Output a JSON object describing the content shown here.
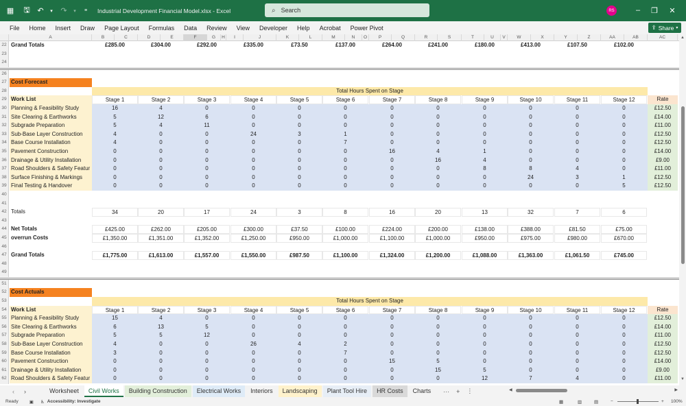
{
  "titlebar": {
    "title": "Industrial Development Financial Model.xlsx  -  Excel",
    "search_placeholder": "Search",
    "avatar_initials": "RS"
  },
  "menu": [
    "File",
    "Home",
    "Insert",
    "Draw",
    "Page Layout",
    "Formulas",
    "Data",
    "Review",
    "View",
    "Developer",
    "Help",
    "Acrobat",
    "Power Pivot"
  ],
  "share_label": "Share",
  "columns": [
    "A",
    "B",
    "C",
    "D",
    "E",
    "F",
    "G",
    "H",
    "I",
    "J",
    "K",
    "L",
    "M",
    "N",
    "O",
    "P",
    "Q",
    "R",
    "S",
    "T",
    "U",
    "V",
    "W",
    "X",
    "Y",
    "Z",
    "AA",
    "AB",
    "AC"
  ],
  "top_grand_totals": {
    "row": "22",
    "label": "Grand Totals",
    "values": [
      "£285.00",
      "£304.00",
      "£292.00",
      "£335.00",
      "£73.50",
      "£137.00",
      "£264.00",
      "£241.00",
      "£180.00",
      "£413.00",
      "£107.50",
      "£102.00"
    ]
  },
  "forecast": {
    "title": "Cost Forecast",
    "band": "Total Hours Spent on Stage",
    "worklist_header": "Work List",
    "stages": [
      "Stage 1",
      "Stage 2",
      "Stage 3",
      "Stage 4",
      "Stage 5",
      "Stage 6",
      "Stage 7",
      "Stage 8",
      "Stage 9",
      "Stage 10",
      "Stage 11",
      "Stage 12"
    ],
    "rate_header": "Rate",
    "rows": [
      {
        "n": "30",
        "label": "Planning & Feasibility Study",
        "v": [
          "16",
          "4",
          "0",
          "0",
          "0",
          "0",
          "0",
          "0",
          "0",
          "0",
          "0",
          "0"
        ],
        "rate": "£12.50"
      },
      {
        "n": "31",
        "label": "Site Clearing & Earthworks",
        "v": [
          "5",
          "12",
          "6",
          "0",
          "0",
          "0",
          "0",
          "0",
          "0",
          "0",
          "0",
          "0"
        ],
        "rate": "£14.00"
      },
      {
        "n": "32",
        "label": "Subgrade Preparation",
        "v": [
          "5",
          "4",
          "11",
          "0",
          "0",
          "0",
          "0",
          "0",
          "0",
          "0",
          "0",
          "0"
        ],
        "rate": "£11.00"
      },
      {
        "n": "33",
        "label": "Sub-Base Layer Construction",
        "v": [
          "4",
          "0",
          "0",
          "24",
          "3",
          "1",
          "0",
          "0",
          "0",
          "0",
          "0",
          "0"
        ],
        "rate": "£12.50"
      },
      {
        "n": "34",
        "label": "Base Course Installation",
        "v": [
          "4",
          "0",
          "0",
          "0",
          "0",
          "7",
          "0",
          "0",
          "0",
          "0",
          "0",
          "0"
        ],
        "rate": "£12.50"
      },
      {
        "n": "35",
        "label": "Pavement Construction",
        "v": [
          "0",
          "0",
          "0",
          "0",
          "0",
          "0",
          "16",
          "4",
          "1",
          "0",
          "0",
          "0"
        ],
        "rate": "£14.00"
      },
      {
        "n": "36",
        "label": "Drainage & Utility Installation",
        "v": [
          "0",
          "0",
          "0",
          "0",
          "0",
          "0",
          "0",
          "16",
          "4",
          "0",
          "0",
          "0"
        ],
        "rate": "£9.00"
      },
      {
        "n": "37",
        "label": "Road Shoulders & Safety Featur",
        "v": [
          "0",
          "0",
          "0",
          "0",
          "0",
          "0",
          "0",
          "0",
          "8",
          "8",
          "4",
          "0"
        ],
        "rate": "£11.00"
      },
      {
        "n": "38",
        "label": "Surface Finishing & Markings",
        "v": [
          "0",
          "0",
          "0",
          "0",
          "0",
          "0",
          "0",
          "0",
          "0",
          "24",
          "3",
          "1"
        ],
        "rate": "£12.50"
      },
      {
        "n": "39",
        "label": "Final Testing & Handover",
        "v": [
          "0",
          "0",
          "0",
          "0",
          "0",
          "0",
          "0",
          "0",
          "0",
          "0",
          "0",
          "5"
        ],
        "rate": "£12.50"
      }
    ],
    "totals_label": "Totals",
    "totals": [
      "34",
      "20",
      "17",
      "24",
      "3",
      "8",
      "16",
      "20",
      "13",
      "32",
      "7",
      "6"
    ],
    "net_label": "Net Totals",
    "net": [
      "£425.00",
      "£262.00",
      "£205.00",
      "£300.00",
      "£37.50",
      "£100.00",
      "£224.00",
      "£200.00",
      "£138.00",
      "£388.00",
      "£81.50",
      "£75.00"
    ],
    "overrun_label": "overrun Costs",
    "overrun": [
      "£1,350.00",
      "£1,351.00",
      "£1,352.00",
      "£1,250.00",
      "£950.00",
      "£1,000.00",
      "£1,100.00",
      "£1,000.00",
      "£950.00",
      "£975.00",
      "£980.00",
      "£670.00"
    ],
    "grand_label": "Grand Totals",
    "grand": [
      "£1,775.00",
      "£1,613.00",
      "£1,557.00",
      "£1,550.00",
      "£987.50",
      "£1,100.00",
      "£1,324.00",
      "£1,200.00",
      "£1,088.00",
      "£1,363.00",
      "£1,061.50",
      "£745.00"
    ]
  },
  "actuals": {
    "title": "Cost Actuals",
    "band": "Total Hours Spent on Stage",
    "worklist_header": "Work List",
    "stages": [
      "Stage 1",
      "Stage 2",
      "Stage 3",
      "Stage 4",
      "Stage 5",
      "Stage 6",
      "Stage 7",
      "Stage 8",
      "Stage 9",
      "Stage 10",
      "Stage 11",
      "Stage 12"
    ],
    "rate_header": "Rate",
    "rows": [
      {
        "n": "55",
        "label": "Planning & Feasibility Study",
        "v": [
          "15",
          "4",
          "0",
          "0",
          "0",
          "0",
          "0",
          "0",
          "0",
          "0",
          "0",
          "0"
        ],
        "rate": "£12.50"
      },
      {
        "n": "56",
        "label": "Site Clearing & Earthworks",
        "v": [
          "6",
          "13",
          "5",
          "0",
          "0",
          "0",
          "0",
          "0",
          "0",
          "0",
          "0",
          "0"
        ],
        "rate": "£14.00"
      },
      {
        "n": "57",
        "label": "Subgrade Preparation",
        "v": [
          "5",
          "5",
          "12",
          "0",
          "0",
          "0",
          "0",
          "0",
          "0",
          "0",
          "0",
          "0"
        ],
        "rate": "£11.00"
      },
      {
        "n": "58",
        "label": "Sub-Base Layer Construction",
        "v": [
          "4",
          "0",
          "0",
          "26",
          "4",
          "2",
          "0",
          "0",
          "0",
          "0",
          "0",
          "0"
        ],
        "rate": "£12.50"
      },
      {
        "n": "59",
        "label": "Base Course Installation",
        "v": [
          "3",
          "0",
          "0",
          "0",
          "0",
          "7",
          "0",
          "0",
          "0",
          "0",
          "0",
          "0"
        ],
        "rate": "£12.50"
      },
      {
        "n": "60",
        "label": "Pavement Construction",
        "v": [
          "0",
          "0",
          "0",
          "0",
          "0",
          "0",
          "15",
          "5",
          "0",
          "0",
          "0",
          "0"
        ],
        "rate": "£14.00"
      },
      {
        "n": "61",
        "label": "Drainage & Utility Installation",
        "v": [
          "0",
          "0",
          "0",
          "0",
          "0",
          "0",
          "0",
          "15",
          "5",
          "0",
          "0",
          "0"
        ],
        "rate": "£9.00"
      },
      {
        "n": "62",
        "label": "Road Shoulders & Safety Featur",
        "v": [
          "0",
          "0",
          "0",
          "0",
          "0",
          "0",
          "0",
          "0",
          "12",
          "7",
          "4",
          "0"
        ],
        "rate": "£11.00"
      }
    ]
  },
  "sheet_tabs": [
    {
      "label": "Worksheet",
      "bg": "#f3f3f3"
    },
    {
      "label": "Civil Works",
      "bg": "#ffffff",
      "active": true
    },
    {
      "label": "Building Construction",
      "bg": "#e2efda"
    },
    {
      "label": "Electrical Works",
      "bg": "#deebf7"
    },
    {
      "label": "Interiors",
      "bg": "#f3f3f3"
    },
    {
      "label": "Landscaping",
      "bg": "#fff2cc"
    },
    {
      "label": "Plant Tool Hire",
      "bg": "#e7eef6"
    },
    {
      "label": "HR Costs",
      "bg": "#d9d9d9"
    },
    {
      "label": "Charts",
      "bg": "#f3f3f3"
    }
  ],
  "status": {
    "ready": "Ready",
    "accessibility": "Accessibility: Investigate",
    "zoom": "100%"
  }
}
